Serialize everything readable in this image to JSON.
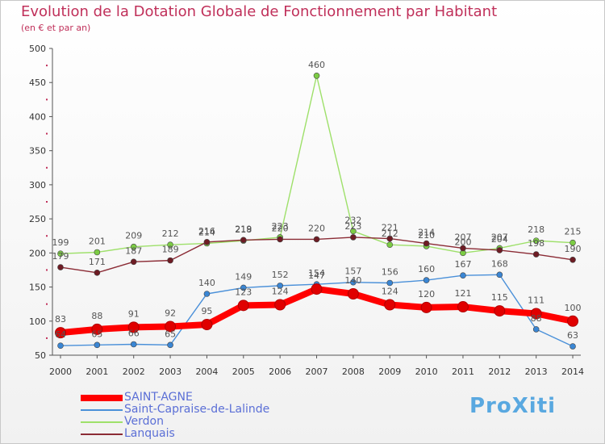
{
  "title": "Evolution de la Dotation Globale de Fonctionnement par Habitant",
  "subtitle": "(en € et par an)",
  "logo_text": "ProXiti",
  "chart_data": {
    "type": "line",
    "title": "Evolution de la Dotation Globale de Fonctionnement par Habitant",
    "subtitle": "(en € et par an)",
    "xlabel": "",
    "ylabel": "",
    "ylim": [
      50,
      500
    ],
    "yticks": [
      50,
      100,
      150,
      200,
      250,
      300,
      350,
      400,
      450,
      500
    ],
    "grid": false,
    "legend_position": "bottom-left",
    "x": [
      "2000",
      "2001",
      "2002",
      "2003",
      "2004",
      "2005",
      "2006",
      "2007",
      "2008",
      "2009",
      "2010",
      "2011",
      "2012",
      "2013",
      "2014"
    ],
    "series": [
      {
        "name": "Verdon",
        "color": "#9ee06a",
        "marker": "#7ccc44",
        "values": [
          199,
          201,
          209,
          212,
          214,
          218,
          223,
          460,
          232,
          212,
          210,
          200,
          207,
          218,
          215
        ]
      },
      {
        "name": "Lanquais",
        "color": "#8b2b35",
        "marker": "#6e1c24",
        "values": [
          179,
          171,
          187,
          189,
          216,
          219,
          220,
          220,
          223,
          221,
          214,
          207,
          204,
          198,
          190
        ]
      },
      {
        "name": "Saint-Capraise-de-Lalinde",
        "color": "#4a90d9",
        "marker": "#3a86d4",
        "values": [
          64,
          65,
          66,
          65,
          140,
          149,
          152,
          154,
          157,
          156,
          160,
          167,
          168,
          88,
          63
        ]
      },
      {
        "name": "SAINT-AGNE",
        "color": "#ff0000",
        "marker": "#e00000",
        "values": [
          83,
          88,
          91,
          92,
          95,
          123,
          124,
          147,
          140,
          124,
          120,
          121,
          115,
          111,
          100
        ]
      }
    ]
  },
  "legend": [
    {
      "label": "SAINT-AGNE",
      "color": "#ff0000"
    },
    {
      "label": "Saint-Capraise-de-Lalinde",
      "color": "#4a90d9"
    },
    {
      "label": "Verdon",
      "color": "#9ee06a"
    },
    {
      "label": "Lanquais",
      "color": "#8b2b35"
    }
  ]
}
